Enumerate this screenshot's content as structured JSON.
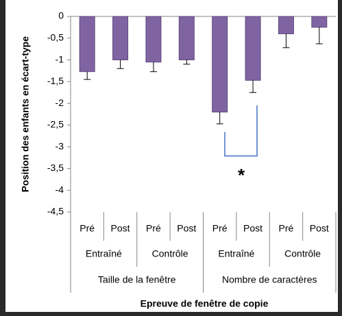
{
  "chart_data": {
    "type": "bar",
    "y_axis_label": "Position des enfants en écart-type",
    "x_axis_label": "Epreuve de fenêtre de copie",
    "categories": [
      "Pré",
      "Post",
      "Pré",
      "Post",
      "Pré",
      "Post",
      "Pré",
      "Post"
    ],
    "category_groups": [
      "Entraîné",
      "Contrôle",
      "Entraîné",
      "Contrôle"
    ],
    "category_supergroups": [
      "Taille de la fenêtre",
      "Nombre de caractères"
    ],
    "values": [
      -1.27,
      -1,
      -1.05,
      -1,
      -2.2,
      -1.47,
      -0.4,
      -0.25
    ],
    "errors": [
      0.18,
      0.2,
      0.22,
      0.1,
      0.27,
      0.28,
      0.32,
      0.38
    ],
    "color": "#8064a2",
    "annotation": "*",
    "ylim": [
      -4.5,
      0
    ],
    "yticks": [
      0,
      {
        "value": -0.5,
        "label": "-0,5"
      },
      -1,
      {
        "value": -1.5,
        "label": "-1,5"
      },
      -2,
      {
        "value": -2.5,
        "label": "-2,5"
      },
      -3,
      {
        "value": -3.5,
        "label": "-3,5"
      },
      -4,
      {
        "value": -4.5,
        "label": "-4,5"
      }
    ],
    "grid": false
  }
}
